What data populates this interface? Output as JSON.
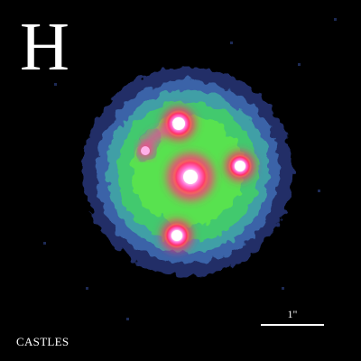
{
  "image": {
    "band_label": "H",
    "credit": "CASTLES",
    "scale_label": "1\"",
    "colors": {
      "background": "#000000",
      "halo_outer": "#3a4a9a",
      "halo_mid": "#3fa7a0",
      "glow": "#4fe05a",
      "core_ring": "#ff3b8a",
      "core": "#ffffff",
      "text": "#ffffff"
    }
  }
}
